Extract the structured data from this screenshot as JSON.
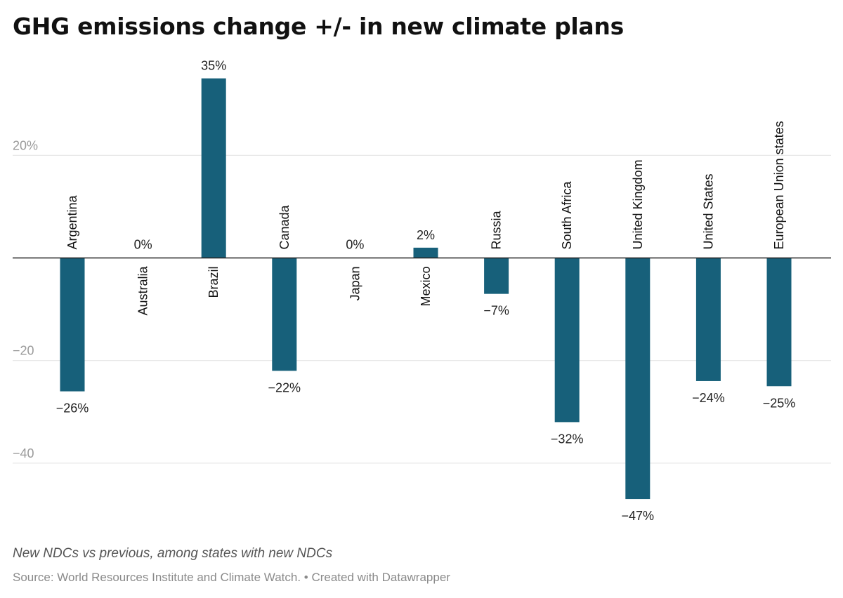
{
  "chart_data": {
    "type": "bar",
    "title": "GHG emissions change +/- in new climate plans",
    "subtitle": "New NDCs vs previous, among states with new NDCs",
    "source": "Source: World Resources Institute and Climate Watch. • Created with Datawrapper",
    "xlabel": "",
    "ylabel": "",
    "ylim": [
      -50,
      35
    ],
    "grid": true,
    "bar_color": "#17607a",
    "categories": [
      "Argentina",
      "Australia",
      "Brazil",
      "Canada",
      "Japan",
      "Mexico",
      "Russia",
      "South Africa",
      "United Kingdom",
      "United States",
      "European Union states"
    ],
    "values": [
      -26,
      0,
      35,
      -22,
      0,
      2,
      -7,
      -32,
      -47,
      -24,
      -25
    ],
    "value_labels": [
      "−26%",
      "0%",
      "35%",
      "−22%",
      "0%",
      "2%",
      "−7%",
      "−32%",
      "−47%",
      "−24%",
      "−25%"
    ],
    "y_ticks": [
      {
        "value": 20,
        "label": "20%"
      },
      {
        "value": 0,
        "label": ""
      },
      {
        "value": -20,
        "label": "−20"
      },
      {
        "value": -40,
        "label": "−40"
      }
    ]
  }
}
